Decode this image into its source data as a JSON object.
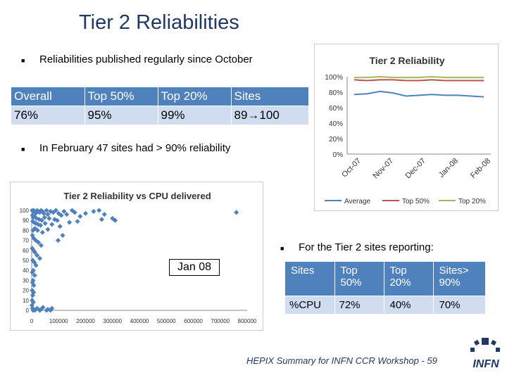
{
  "slide": {
    "title": "Tier 2 Reliabilities",
    "bullet1": "Reliabilities published regularly since October",
    "bullet2": "In February 47 sites had > 90% reliability",
    "bullet3": "For the Tier 2 sites reporting:",
    "callout": "Jan 08",
    "footer": "HEPIX Summary for INFN CCR Workshop - 59",
    "logo_text": "INFN"
  },
  "table1": {
    "headers": [
      "Overall",
      "Top 50%",
      "Top 20%",
      "Sites"
    ],
    "values": [
      "76%",
      "95%",
      "99%",
      "89→100"
    ]
  },
  "table2": {
    "headers": [
      "Sites",
      "Top 50%",
      "Top 20%",
      "Sites> 90%"
    ],
    "values": [
      "%CPU",
      "72%",
      "40%",
      "70%"
    ]
  },
  "colors": {
    "title": "#1f3864",
    "table_header": "#4f81bd",
    "table_row": "#d0dcef",
    "average": "#4f81bd",
    "top50": "#c0504d",
    "top20": "#9bbb59",
    "scatter": "#4f81bd"
  },
  "chart_data": [
    {
      "type": "line",
      "title": "Tier 2 Reliability",
      "categories": [
        "Oct-07",
        "Nov-07",
        "Dec-07",
        "Jan-08",
        "Feb-08"
      ],
      "x": [
        0,
        1,
        2,
        3,
        4,
        5,
        6,
        7,
        8,
        9,
        10
      ],
      "series": [
        {
          "name": "Average",
          "values": [
            77,
            78,
            81,
            79,
            75,
            76,
            77,
            76,
            76,
            75,
            74
          ]
        },
        {
          "name": "Top 50%",
          "values": [
            96,
            95,
            96,
            96,
            95,
            95,
            96,
            95,
            95,
            95,
            95
          ]
        },
        {
          "name": "Top 20%",
          "values": [
            99,
            99,
            100,
            99,
            99,
            99,
            100,
            99,
            99,
            99,
            99
          ]
        }
      ],
      "yticks": [
        "0%",
        "20%",
        "40%",
        "60%",
        "80%",
        "100%"
      ],
      "ylim": [
        0,
        100
      ],
      "legend": "bottom"
    },
    {
      "type": "scatter",
      "title": "Tier 2 Reliability vs CPU delivered",
      "xlim": [
        0,
        800000
      ],
      "ylim": [
        0,
        100
      ],
      "xticks": [
        "0",
        "100000",
        "200000",
        "300000",
        "400000",
        "500000",
        "600000",
        "700000",
        "800000"
      ],
      "yticks": [
        "0",
        "10",
        "20",
        "30",
        "40",
        "50",
        "60",
        "70",
        "80",
        "90",
        "100"
      ],
      "points": [
        [
          2000,
          100
        ],
        [
          5000,
          99
        ],
        [
          8000,
          100
        ],
        [
          12000,
          98
        ],
        [
          15000,
          97
        ],
        [
          20000,
          100
        ],
        [
          25000,
          99
        ],
        [
          30000,
          98
        ],
        [
          35000,
          100
        ],
        [
          40000,
          99
        ],
        [
          45000,
          97
        ],
        [
          55000,
          100
        ],
        [
          60000,
          96
        ],
        [
          70000,
          99
        ],
        [
          80000,
          98
        ],
        [
          90000,
          100
        ],
        [
          100000,
          97
        ],
        [
          110000,
          95
        ],
        [
          120000,
          99
        ],
        [
          130000,
          96
        ],
        [
          150000,
          100
        ],
        [
          160000,
          98
        ],
        [
          180000,
          94
        ],
        [
          200000,
          97
        ],
        [
          230000,
          99
        ],
        [
          250000,
          100
        ],
        [
          270000,
          96
        ],
        [
          300000,
          92
        ],
        [
          310000,
          90
        ],
        [
          760000,
          98
        ],
        [
          3000,
          95
        ],
        [
          6000,
          93
        ],
        [
          10000,
          94
        ],
        [
          18000,
          92
        ],
        [
          28000,
          91
        ],
        [
          38000,
          90
        ],
        [
          48000,
          93
        ],
        [
          65000,
          92
        ],
        [
          85000,
          91
        ],
        [
          95000,
          90
        ],
        [
          140000,
          88
        ],
        [
          170000,
          89
        ],
        [
          260000,
          91
        ],
        [
          4000,
          89
        ],
        [
          9000,
          88
        ],
        [
          16000,
          87
        ],
        [
          24000,
          86
        ],
        [
          33000,
          85
        ],
        [
          50000,
          87
        ],
        [
          75000,
          86
        ],
        [
          105000,
          84
        ],
        [
          5000,
          80
        ],
        [
          12000,
          82
        ],
        [
          22000,
          80
        ],
        [
          40000,
          78
        ],
        [
          60000,
          81
        ],
        [
          98000,
          70
        ],
        [
          115000,
          75
        ],
        [
          3000,
          75
        ],
        [
          8000,
          72
        ],
        [
          15000,
          70
        ],
        [
          25000,
          68
        ],
        [
          35000,
          65
        ],
        [
          2000,
          62
        ],
        [
          7000,
          60
        ],
        [
          12000,
          58
        ],
        [
          20000,
          55
        ],
        [
          30000,
          52
        ],
        [
          4000,
          50
        ],
        [
          10000,
          48
        ],
        [
          16000,
          45
        ],
        [
          6000,
          40
        ],
        [
          2000,
          38
        ],
        [
          11000,
          35
        ],
        [
          5000,
          30
        ],
        [
          3000,
          28
        ],
        [
          8000,
          25
        ],
        [
          2000,
          20
        ],
        [
          7000,
          18
        ],
        [
          4000,
          15
        ],
        [
          2000,
          10
        ],
        [
          6000,
          8
        ],
        [
          1000,
          5
        ],
        [
          3000,
          2
        ],
        [
          5000,
          0
        ],
        [
          8000,
          1
        ],
        [
          12000,
          0
        ],
        [
          20000,
          2
        ],
        [
          30000,
          0
        ],
        [
          35000,
          1
        ],
        [
          42000,
          3
        ],
        [
          55000,
          0
        ],
        [
          60000,
          1
        ],
        [
          70000,
          0
        ],
        [
          75000,
          2
        ]
      ]
    }
  ]
}
